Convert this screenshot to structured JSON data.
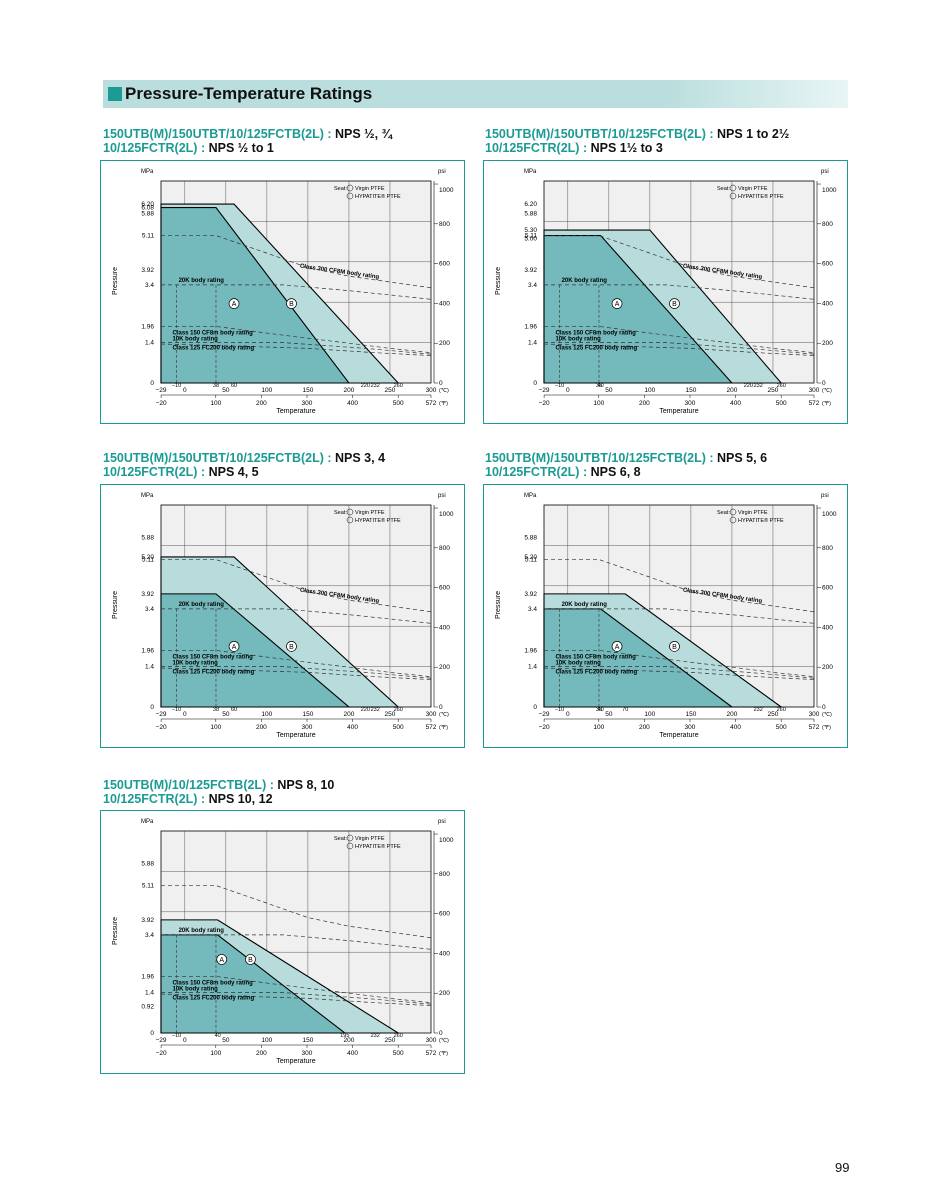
{
  "header": {
    "title": "Pressure-Temperature Ratings",
    "accent": "#1b9b93",
    "banner": "#b9dedd"
  },
  "page_number": "99",
  "colors": {
    "A": "#74b9bb",
    "B": "#b8dcdc",
    "grid": "#f0f0f0",
    "line": "#000000",
    "frame": "#1b9b93"
  },
  "common": {
    "x_label": "Temperature",
    "y_label": "Pressure",
    "y_unit": "MPa",
    "y2_unit": "psi",
    "x_unit_c": "(℃)",
    "x_unit_f": "(℉)",
    "seat_prefix": "Seat:",
    "seat_a": "Virgin PTFE",
    "seat_b": "HYPATITE® PTFE",
    "x_ticks_f": [
      "−20",
      "100",
      "200",
      "300",
      "400",
      "500",
      "572"
    ],
    "y2_ticks": [
      "0",
      "200",
      "400",
      "600",
      "800",
      "1000"
    ],
    "label_20k": "20K body rating",
    "label_300": "Class 300 CF8M body rating",
    "label_150": "Class 150 CF8m body rating",
    "label_10k": "10K body rating",
    "label_125": "Class 125 FC200 body rating",
    "label_a": "A",
    "label_b": "B"
  },
  "chart_data": [
    {
      "id": "c1",
      "type": "area",
      "title_model1": "150UTB(M)/150UTBT/10/125FCTB(2L) :",
      "title_nps1": "NPS ½, ¾",
      "title_model2": "10/125FCTR(2L) :",
      "title_nps2": "NPS ½  to 1",
      "x_unit": "°C",
      "y_unit": "MPa",
      "xlim": [
        -29,
        300
      ],
      "ylim": [
        0,
        7.0
      ],
      "y_ticks": [
        "6.20",
        "6.08",
        "5.88",
        "5.11",
        "3.92",
        "3.4",
        "1.96",
        "1.4",
        "0"
      ],
      "x_ticks_c": [
        "−29",
        "−10",
        "0",
        "38",
        "50",
        "60",
        "100",
        "150",
        "200",
        "220",
        "232",
        "250",
        "260",
        "300"
      ],
      "series": [
        {
          "name": "A",
          "x": [
            -29,
            38,
            200
          ],
          "y": [
            6.08,
            6.08,
            0
          ]
        },
        {
          "name": "B",
          "x": [
            -29,
            60,
            260
          ],
          "y": [
            6.2,
            6.2,
            0
          ]
        }
      ]
    },
    {
      "id": "c2",
      "type": "area",
      "title_model1": "150UTB(M)/150UTBT/10/125FCTB(2L) :",
      "title_nps1": "NPS 1 to 2½",
      "title_model2": "10/125FCTR(2L) :",
      "title_nps2": "NPS  1½  to 3",
      "x_unit": "°C",
      "y_unit": "MPa",
      "xlim": [
        -29,
        300
      ],
      "ylim": [
        0,
        7.0
      ],
      "y_ticks": [
        "6.20",
        "5.88",
        "5.30",
        "5.11",
        "5.00",
        "3.92",
        "3.4",
        "1.96",
        "1.4",
        "0"
      ],
      "x_ticks_c": [
        "−29",
        "−10",
        "0",
        "38",
        "40",
        "50",
        "100",
        "150",
        "200",
        "220",
        "232",
        "250",
        "260",
        "300"
      ],
      "series": [
        {
          "name": "A",
          "x": [
            -29,
            40,
            200
          ],
          "y": [
            5.11,
            5.11,
            0
          ]
        },
        {
          "name": "B",
          "x": [
            -29,
            100,
            260
          ],
          "y": [
            5.3,
            5.3,
            0
          ]
        }
      ]
    },
    {
      "id": "c3",
      "type": "area",
      "title_model1": "150UTB(M)/150UTBT/10/125FCTB(2L) :",
      "title_nps1": "NPS 3, 4",
      "title_model2": "10/125FCTR(2L) :",
      "title_nps2": "NPS 4, 5",
      "x_unit": "°C",
      "y_unit": "MPa",
      "xlim": [
        -29,
        300
      ],
      "ylim": [
        0,
        7.0
      ],
      "y_ticks": [
        "5.88",
        "5.20",
        "5.11",
        "3.92",
        "3.4",
        "1.96",
        "1.4",
        "0"
      ],
      "x_ticks_c": [
        "−29",
        "−10",
        "0",
        "38",
        "50",
        "60",
        "100",
        "150",
        "200",
        "220",
        "232",
        "250",
        "260",
        "300"
      ],
      "series": [
        {
          "name": "A",
          "x": [
            -29,
            38,
            200
          ],
          "y": [
            3.92,
            3.92,
            0
          ]
        },
        {
          "name": "B",
          "x": [
            -29,
            60,
            260
          ],
          "y": [
            5.2,
            5.2,
            0
          ]
        }
      ]
    },
    {
      "id": "c4",
      "type": "area",
      "title_model1": "150UTB(M)/150UTBT/10/125FCTB(2L) :",
      "title_nps1": "NPS 5, 6",
      "title_model2": "10/125FCTR(2L) :",
      "title_nps2": "NPS 6, 8",
      "x_unit": "°C",
      "y_unit": "MPa",
      "xlim": [
        -29,
        300
      ],
      "ylim": [
        0,
        7.0
      ],
      "y_ticks": [
        "5.88",
        "5.20",
        "5.11",
        "3.92",
        "3.4",
        "1.96",
        "1.4",
        "0"
      ],
      "x_ticks_c": [
        "−29",
        "−10",
        "0",
        "38",
        "40",
        "50",
        "70",
        "100",
        "150",
        "200",
        "232",
        "250",
        "260",
        "300"
      ],
      "series": [
        {
          "name": "A",
          "x": [
            -29,
            40,
            200
          ],
          "y": [
            3.4,
            3.4,
            0
          ]
        },
        {
          "name": "B",
          "x": [
            -29,
            70,
            260
          ],
          "y": [
            3.92,
            3.92,
            0
          ]
        }
      ]
    },
    {
      "id": "c5",
      "type": "area",
      "title_model1": "150UTB(M)/10/125FCTB(2L) :",
      "title_nps1": "NPS 8, 10",
      "title_model2": "10/125FCTR(2L) :",
      "title_nps2": "NPS 10, 12",
      "x_unit": "°C",
      "y_unit": "MPa",
      "xlim": [
        -29,
        300
      ],
      "ylim": [
        0,
        7.0
      ],
      "y_ticks": [
        "5.88",
        "5.11",
        "3.92",
        "3.4",
        "1.96",
        "1.4",
        "0.92",
        "0"
      ],
      "x_ticks_c": [
        "−29",
        "−10",
        "0",
        "40",
        "50",
        "100",
        "150",
        "195",
        "200",
        "232",
        "250",
        "260",
        "300"
      ],
      "series": [
        {
          "name": "A",
          "x": [
            -29,
            40,
            195
          ],
          "y": [
            3.4,
            3.4,
            0
          ]
        },
        {
          "name": "B",
          "x": [
            -29,
            40,
            260
          ],
          "y": [
            3.92,
            3.92,
            0
          ]
        }
      ]
    }
  ]
}
